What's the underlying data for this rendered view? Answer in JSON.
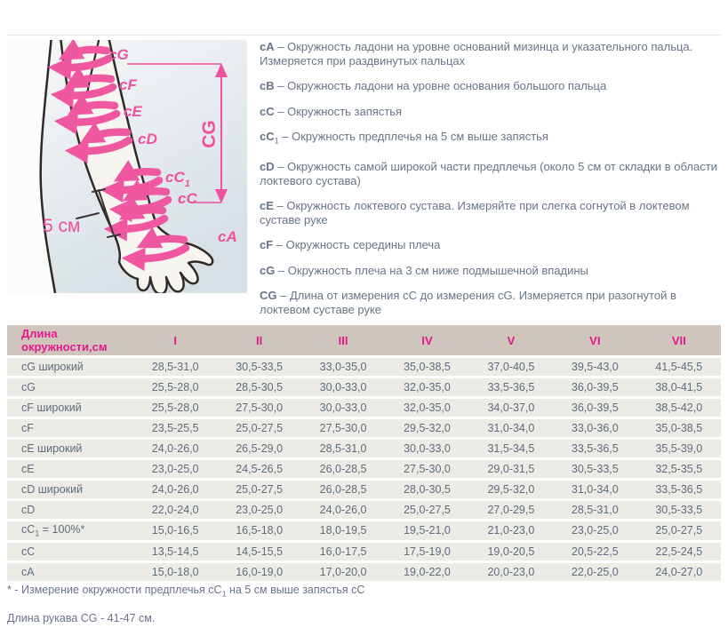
{
  "colors": {
    "accent_pink": "#ef58a0",
    "label_pink": "#f0519c",
    "table_header_pink": "#e3188c",
    "table_header_bg": "#cfc5bd",
    "table_row_bg": "#edebe5",
    "body_text": "#687487",
    "table_text": "#5e6d7c"
  },
  "diagram": {
    "labels": {
      "cG": "cG",
      "cF": "cF",
      "cE": "cE",
      "cD": "cD",
      "cC1_main": "cC",
      "cC1_sub": "1",
      "cC": "cC",
      "cA": "cA",
      "dim": "CG",
      "offset": "5 см"
    }
  },
  "descriptions": [
    {
      "key": "cA",
      "sub": "",
      "text": "– Окружность ладони на уровне оснований мизинца и указательного пальца. Измеряется при раздвинутых пальцах"
    },
    {
      "key": "cB",
      "sub": "",
      "text": "– Окружность ладони на уровне основания большого пальца"
    },
    {
      "key": "cC",
      "sub": "",
      "text": "– Окружность запястья"
    },
    {
      "key": "cC",
      "sub": "1",
      "text": "– Окружность предплечья на 5 см выше запястья"
    },
    {
      "key": "cD",
      "sub": "",
      "text": "– Окружность самой широкой части предплечья (около 5 см от складки в области локтевого сустава)"
    },
    {
      "key": "cE",
      "sub": "",
      "text": "– Окружность локтевого сустава. Измеряйте при слегка согнутой в локтевом суставе руке"
    },
    {
      "key": "cF",
      "sub": "",
      "text": "– Окружность середины плеча"
    },
    {
      "key": "cG",
      "sub": "",
      "text": "– Окружность плеча на 3 см ниже подмышечной впадины"
    },
    {
      "key": "CG",
      "sub": "",
      "text": "– Длина от измерения cC до измерения cG. Измеряется при разогнутой в локтевом суставе руке"
    }
  ],
  "table": {
    "header_label": "Длина окружности,см",
    "columns": [
      "I",
      "II",
      "III",
      "IV",
      "V",
      "VI",
      "VII"
    ],
    "rows": [
      {
        "label": "cG широкий",
        "sub": "",
        "rest": "",
        "values": [
          "28,5-31,0",
          "30,5-33,5",
          "33,0-35,0",
          "35,0-38,5",
          "37,0-40,5",
          "39,5-43,0",
          "41,5-45,5"
        ]
      },
      {
        "label": "cG",
        "sub": "",
        "rest": "",
        "values": [
          "25,5-28,0",
          "28,5-30,5",
          "30,0-33,0",
          "32,0-35,0",
          "33,5-36,5",
          "36,0-39,5",
          "38,0-41,5"
        ]
      },
      {
        "label": "cF широкий",
        "sub": "",
        "rest": "",
        "values": [
          "25,5-28,0",
          "27,5-30,0",
          "30,0-33,0",
          "32,0-35,0",
          "34,0-37,0",
          "36,0-39,5",
          "38,5-42,0"
        ]
      },
      {
        "label": "cF",
        "sub": "",
        "rest": "",
        "values": [
          "23,5-25,5",
          "25,0-27,5",
          "27,5-30,0",
          "29,5-32,0",
          "31,0-34,0",
          "33,0-36,0",
          "35,0-38,5"
        ]
      },
      {
        "label": "cE широкий",
        "sub": "",
        "rest": "",
        "values": [
          "24,0-26,0",
          "26,5-29,0",
          "28,5-31,0",
          "30,0-33,0",
          "31,5-34,5",
          "33,5-36,5",
          "35,5-39,0"
        ]
      },
      {
        "label": "cE",
        "sub": "",
        "rest": "",
        "values": [
          "23,0-25,0",
          "24,5-26,5",
          "26,0-28,5",
          "27,5-30,0",
          "29,0-31,5",
          "30,5-33,5",
          "32,5-35,5"
        ]
      },
      {
        "label": "cD широкий",
        "sub": "",
        "rest": "",
        "values": [
          "24,0-26,0",
          "25,0-27,5",
          "26,0-28,5",
          "28,0-30,5",
          "29,5-32,0",
          "31,0-34,0",
          "33,5-36,5"
        ]
      },
      {
        "label": "cD",
        "sub": "",
        "rest": "",
        "values": [
          "22,0-24,0",
          "23,0-25,0",
          "24,0-26,0",
          "25,0-27,5",
          "27,0-29,5",
          "28,5-31,0",
          "30,5-33,5"
        ]
      },
      {
        "label": "cC",
        "sub": "1",
        "rest": " = 100%*",
        "values": [
          "15,0-16,5",
          "16,5-18,0",
          "18,0-19,5",
          "19,5-21,0",
          "21,0-23,0",
          "23,0-25,0",
          "25,0-27,5"
        ]
      },
      {
        "label": "cC",
        "sub": "",
        "rest": "",
        "values": [
          "13,5-14,5",
          "14,5-15,5",
          "16,0-17,5",
          "17,5-19,0",
          "19,0-20,5",
          "20,5-22,5",
          "22,5-24,5"
        ]
      },
      {
        "label": "cA",
        "sub": "",
        "rest": "",
        "values": [
          "15,0-18,0",
          "16,0-19,0",
          "17,0-20,0",
          "19,0-22,0",
          "20,0-23,0",
          "22,0-25,0",
          "24,0-27,0"
        ]
      }
    ]
  },
  "footnotes": {
    "asterisk_pre": "* - Измерение окружности предплечья cC",
    "asterisk_sub": "1",
    "asterisk_post": " на 5 см выше запястья cC",
    "sleeve_length": "Длина рукава CG - 41-47 см."
  }
}
